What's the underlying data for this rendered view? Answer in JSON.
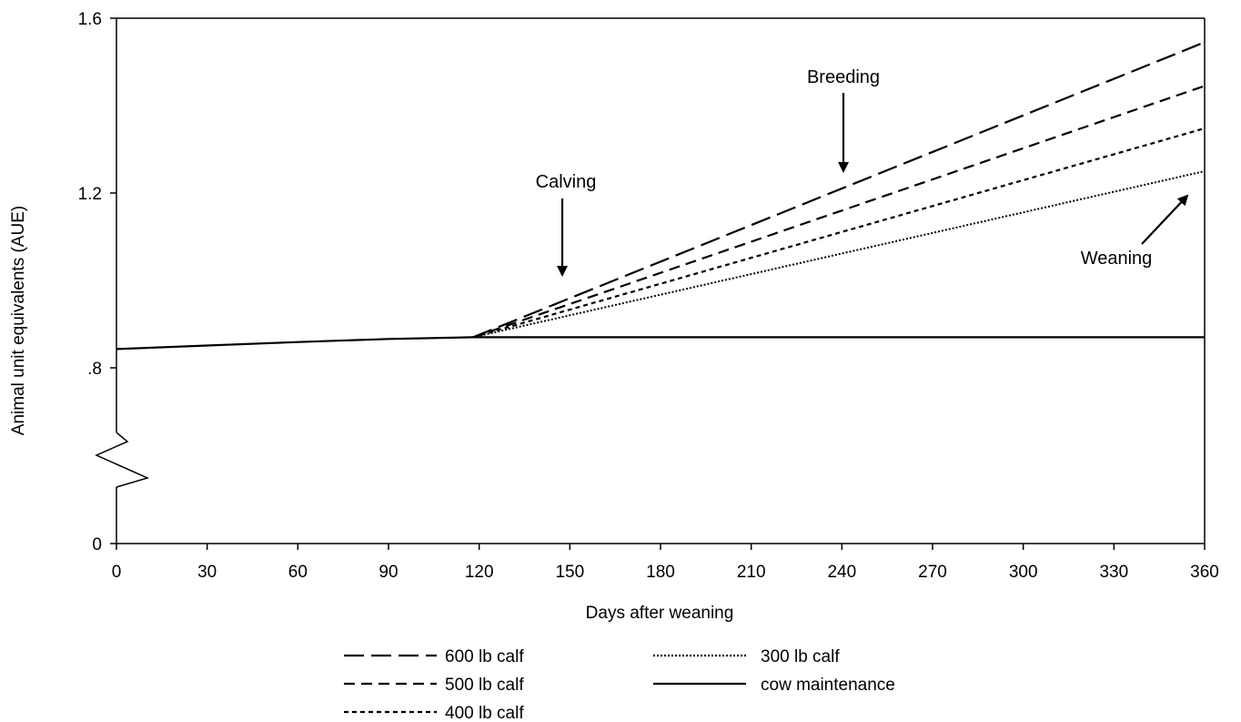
{
  "chart_data": {
    "type": "line",
    "title": "",
    "xlabel": "Days after weaning",
    "ylabel": "Animal unit equivalents (AUE)",
    "xlim": [
      0,
      360
    ],
    "ylim": [
      0.5,
      1.6
    ],
    "y_axis_break": "broken axis between 0 and 0.8 (zigzag)",
    "grid": false,
    "legend_position": "bottom",
    "x_ticks": [
      {
        "value": 0,
        "label": "0"
      },
      {
        "value": 30,
        "label": "30"
      },
      {
        "value": 60,
        "label": "60"
      },
      {
        "value": 90,
        "label": "90"
      },
      {
        "value": 120,
        "label": "120"
      },
      {
        "value": 150,
        "label": "150"
      },
      {
        "value": 180,
        "label": "180"
      },
      {
        "value": 210,
        "label": "210"
      },
      {
        "value": 240,
        "label": "240"
      },
      {
        "value": 270,
        "label": "270"
      },
      {
        "value": 300,
        "label": "300"
      },
      {
        "value": 330,
        "label": "330"
      },
      {
        "value": 360,
        "label": "360"
      }
    ],
    "y_ticks": [
      {
        "value": 1.6,
        "label": "1.6"
      },
      {
        "value": 1.2,
        "label": "1.2"
      },
      {
        "value": 0.8,
        "label": ".8"
      },
      {
        "value": 0.5,
        "label": "0"
      }
    ],
    "series": [
      {
        "name": "600 lb calf",
        "dash": "long-dash",
        "x": [
          118,
          360
        ],
        "y": [
          0.87,
          1.545
        ]
      },
      {
        "name": "500 lb calf",
        "dash": "dash",
        "x": [
          118,
          360
        ],
        "y": [
          0.87,
          1.445
        ]
      },
      {
        "name": "400 lb calf",
        "dash": "short-dash",
        "x": [
          118,
          360
        ],
        "y": [
          0.87,
          1.348
        ]
      },
      {
        "name": "300 lb calf",
        "dash": "dotted",
        "x": [
          118,
          360
        ],
        "y": [
          0.87,
          1.25
        ]
      },
      {
        "name": "cow maintenance",
        "dash": "solid",
        "x": [
          0,
          30,
          60,
          90,
          118,
          360
        ],
        "y": [
          0.843,
          0.851,
          0.859,
          0.866,
          0.87,
          0.87
        ]
      }
    ],
    "annotations": [
      {
        "text": "Calving",
        "x": 148,
        "y": 1.2
      },
      {
        "text": "Breeding",
        "x": 240,
        "y": 1.48
      },
      {
        "text": "Weaning",
        "x": 345,
        "y": 1.14
      }
    ]
  }
}
